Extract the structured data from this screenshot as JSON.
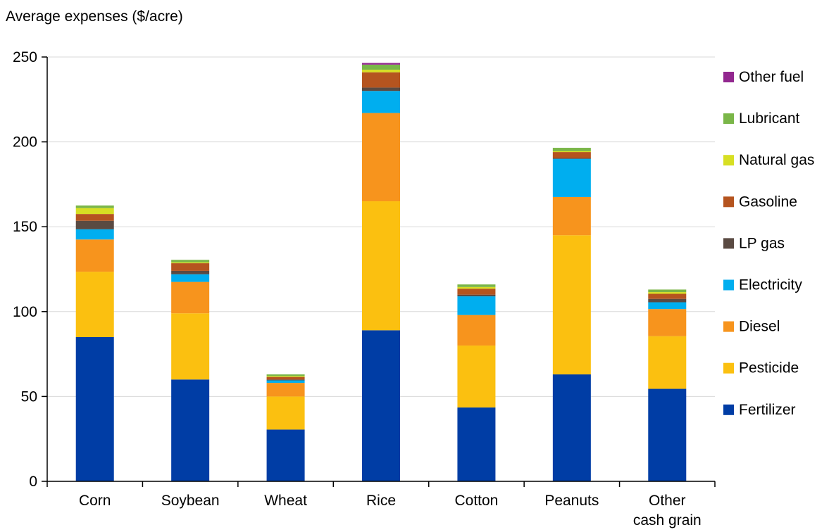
{
  "chart_data": {
    "type": "bar",
    "stacked": true,
    "title": "",
    "xlabel": "",
    "ylabel": "Average expenses ($/acre)",
    "ylim": [
      0,
      250
    ],
    "yticks": [
      0,
      50,
      100,
      150,
      200,
      250
    ],
    "grid": true,
    "legend_position": "right",
    "categories": [
      "Corn",
      "Soybean",
      "Wheat",
      "Rice",
      "Cotton",
      "Peanuts",
      "Other cash grain"
    ],
    "category_labels": [
      [
        "Corn"
      ],
      [
        "Soybean"
      ],
      [
        "Wheat"
      ],
      [
        "Rice"
      ],
      [
        "Cotton"
      ],
      [
        "Peanuts"
      ],
      [
        "Other",
        "cash grain"
      ]
    ],
    "series": [
      {
        "name": "Fertilizer",
        "color": "#003da5",
        "values": [
          85,
          60,
          30.5,
          89,
          43.5,
          63,
          54.5
        ]
      },
      {
        "name": "Pesticide",
        "color": "#fbc010",
        "values": [
          38.5,
          39,
          19.5,
          76,
          36.5,
          82,
          31
        ]
      },
      {
        "name": "Diesel",
        "color": "#f7941d",
        "values": [
          19,
          18.5,
          8,
          52,
          18,
          22.5,
          16
        ]
      },
      {
        "name": "Electricity",
        "color": "#00aeef",
        "values": [
          6,
          4.5,
          1.5,
          13,
          11,
          22.5,
          4
        ]
      },
      {
        "name": "LP gas",
        "color": "#5a4a42",
        "values": [
          5,
          2,
          0.5,
          2,
          1,
          0.5,
          2
        ]
      },
      {
        "name": "Gasoline",
        "color": "#b5541f",
        "values": [
          4,
          4.5,
          1.5,
          9,
          3.5,
          3.5,
          3
        ]
      },
      {
        "name": "Natural gas",
        "color": "#d7df23",
        "values": [
          3.5,
          0.5,
          0.5,
          1.5,
          1,
          0.5,
          1
        ]
      },
      {
        "name": "Lubricant",
        "color": "#7ab648",
        "values": [
          1.5,
          1.5,
          1,
          3,
          1.5,
          2,
          1.5
        ]
      },
      {
        "name": "Other fuel",
        "color": "#92278f",
        "values": [
          0,
          0,
          0,
          1,
          0,
          0,
          0
        ]
      }
    ]
  }
}
